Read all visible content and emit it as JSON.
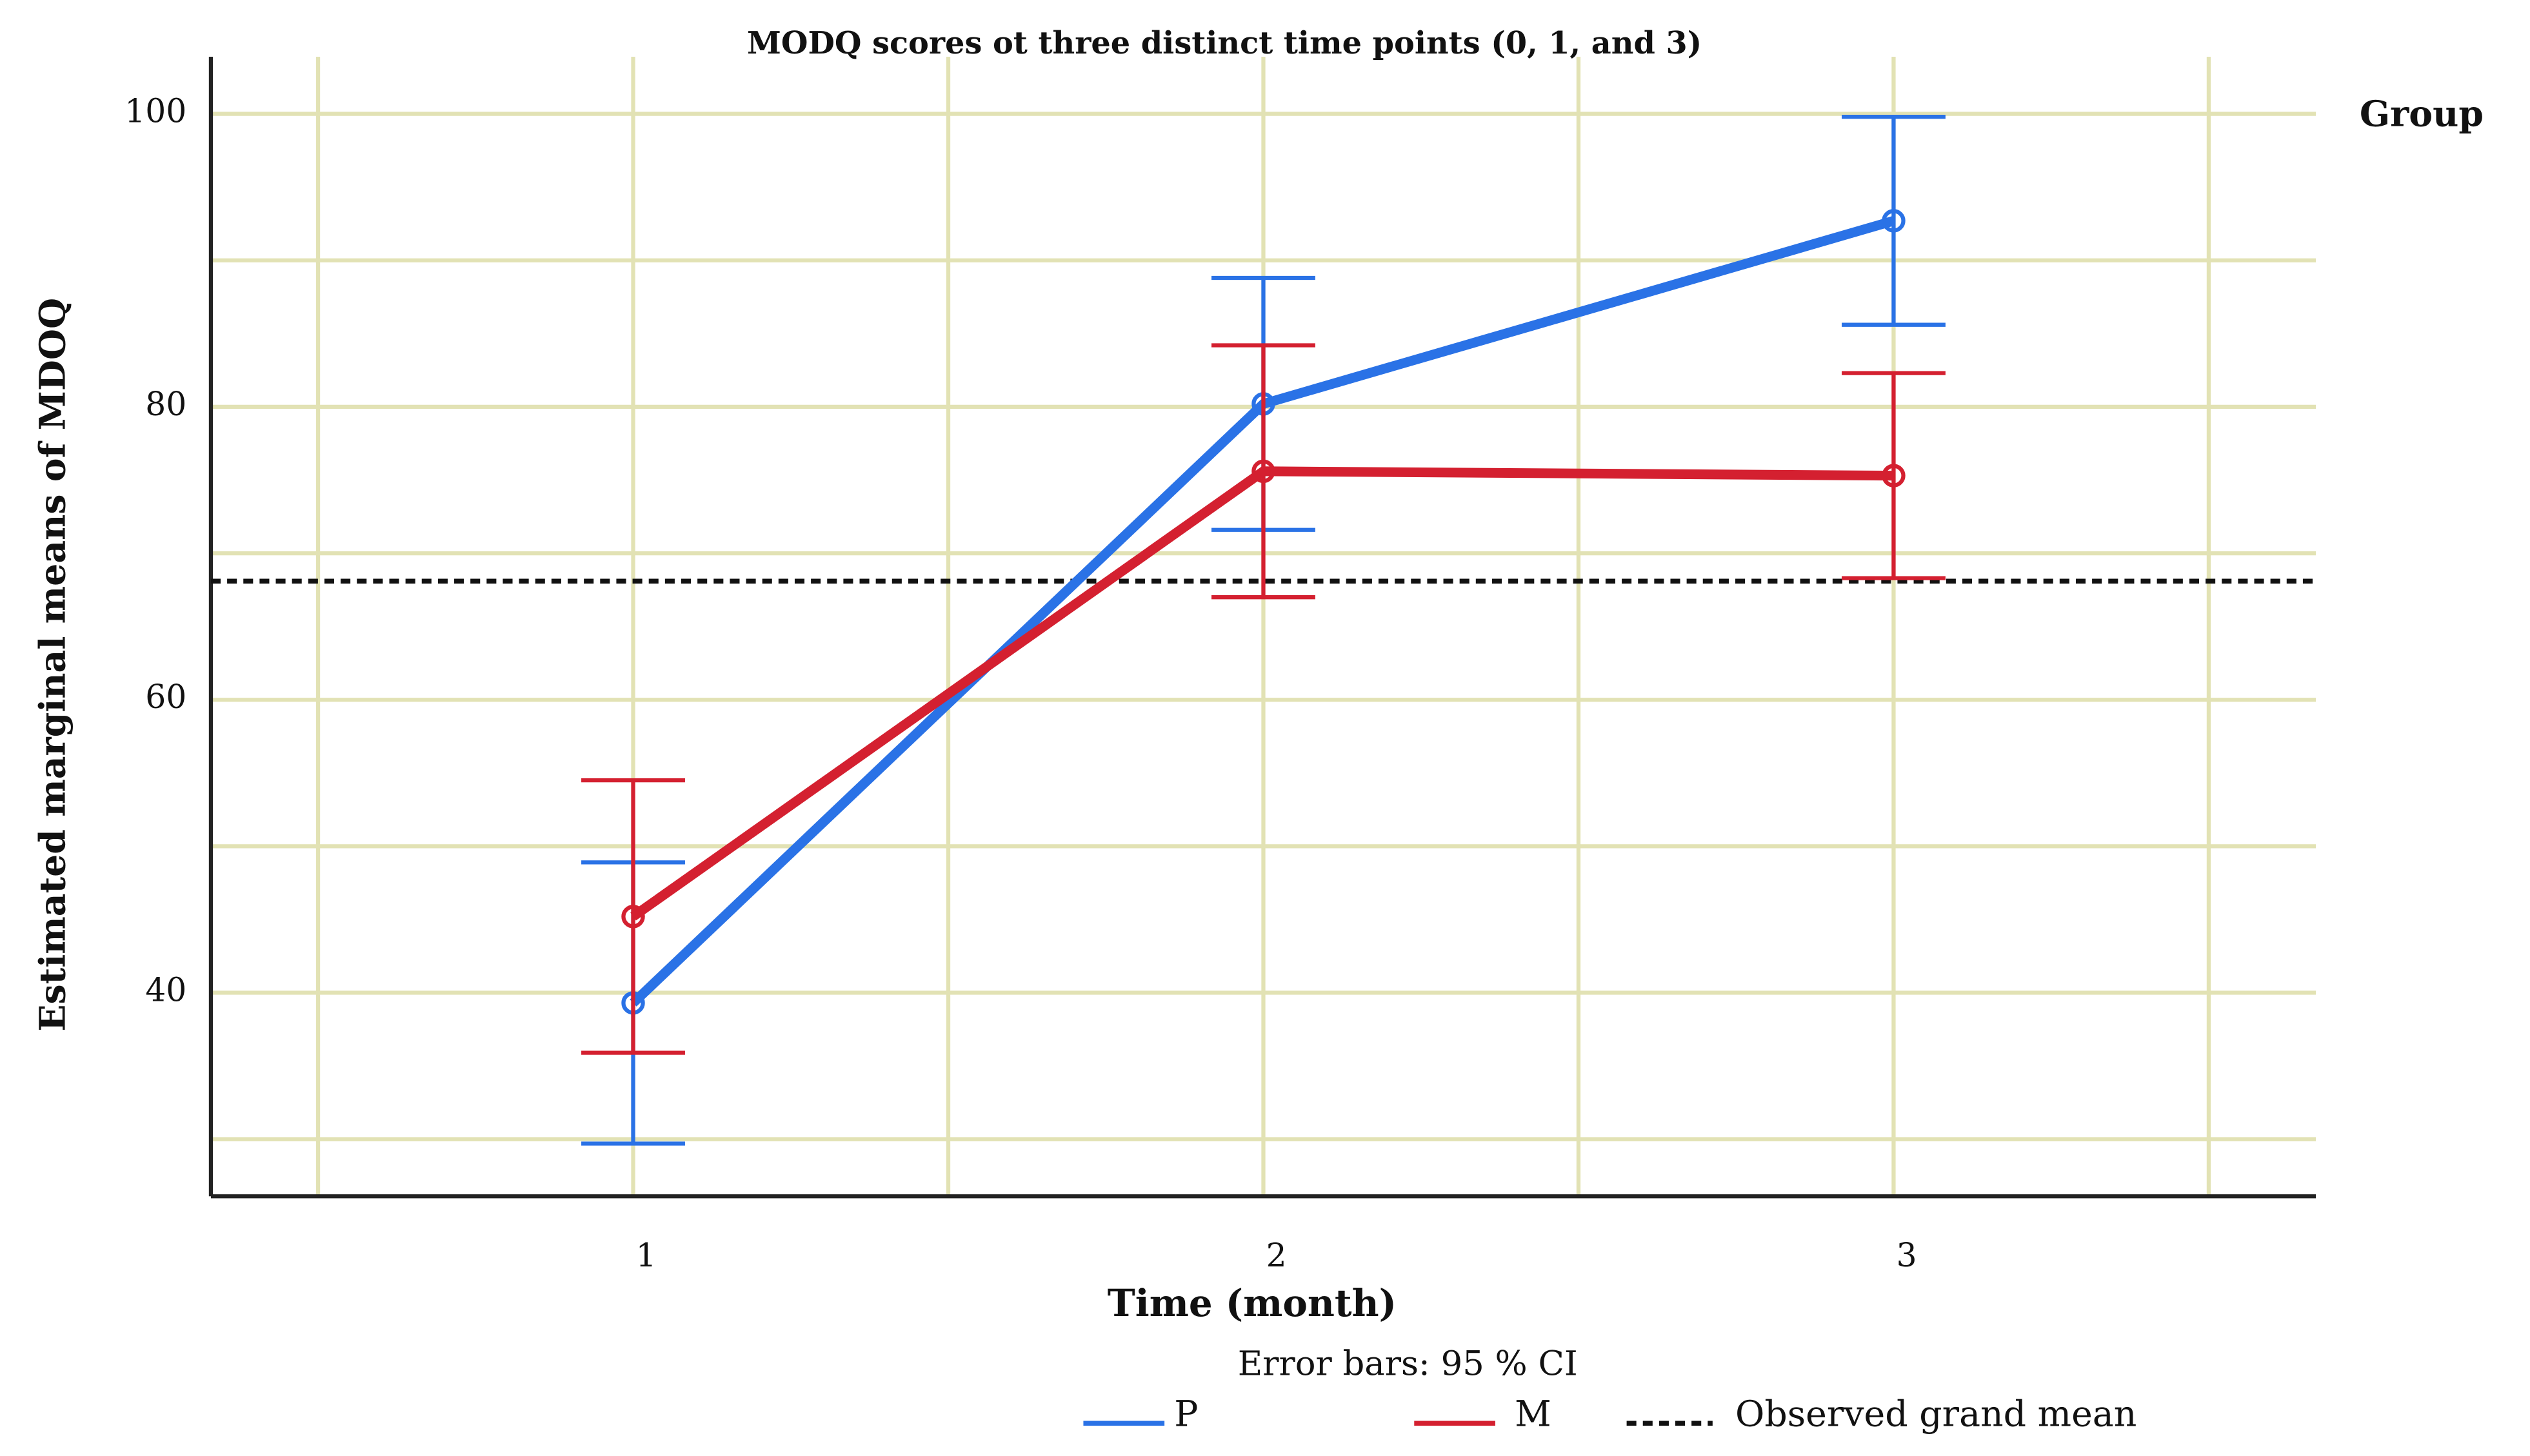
{
  "chart_data": {
    "type": "line",
    "title": "MODQ scores ot three distinct time points (0, 1, and 3)",
    "x_label": "Time (month)",
    "y_label": "Estimated marginal means of MDOQ",
    "note": "Error bars: 95 % CI",
    "legend_title": "Group",
    "x": [
      1,
      2,
      3
    ],
    "xlim": [
      0.33,
      3.67
    ],
    "xticks": [
      1,
      2,
      3
    ],
    "x_grid": [
      0.5,
      1,
      1.5,
      2,
      2.5,
      3,
      3.5
    ],
    "ylim": [
      26.1,
      103.9
    ],
    "yticks": [
      40,
      60,
      80,
      100
    ],
    "y_grid": [
      30,
      40,
      50,
      60,
      70,
      80,
      90,
      100
    ],
    "grid_color": "#e2e2b4",
    "series": [
      {
        "name": "P",
        "color": "#2a72e6",
        "values": [
          39.3,
          80.2,
          92.7
        ],
        "errors": [
          9.6,
          8.6,
          7.1
        ]
      },
      {
        "name": "M",
        "color": "#d42030",
        "values": [
          45.2,
          75.6,
          75.3
        ],
        "errors": [
          9.3,
          8.6,
          7.0
        ]
      }
    ],
    "reference_line": {
      "name": "Observed grand mean",
      "value": 68.1,
      "color": "#111111"
    }
  }
}
